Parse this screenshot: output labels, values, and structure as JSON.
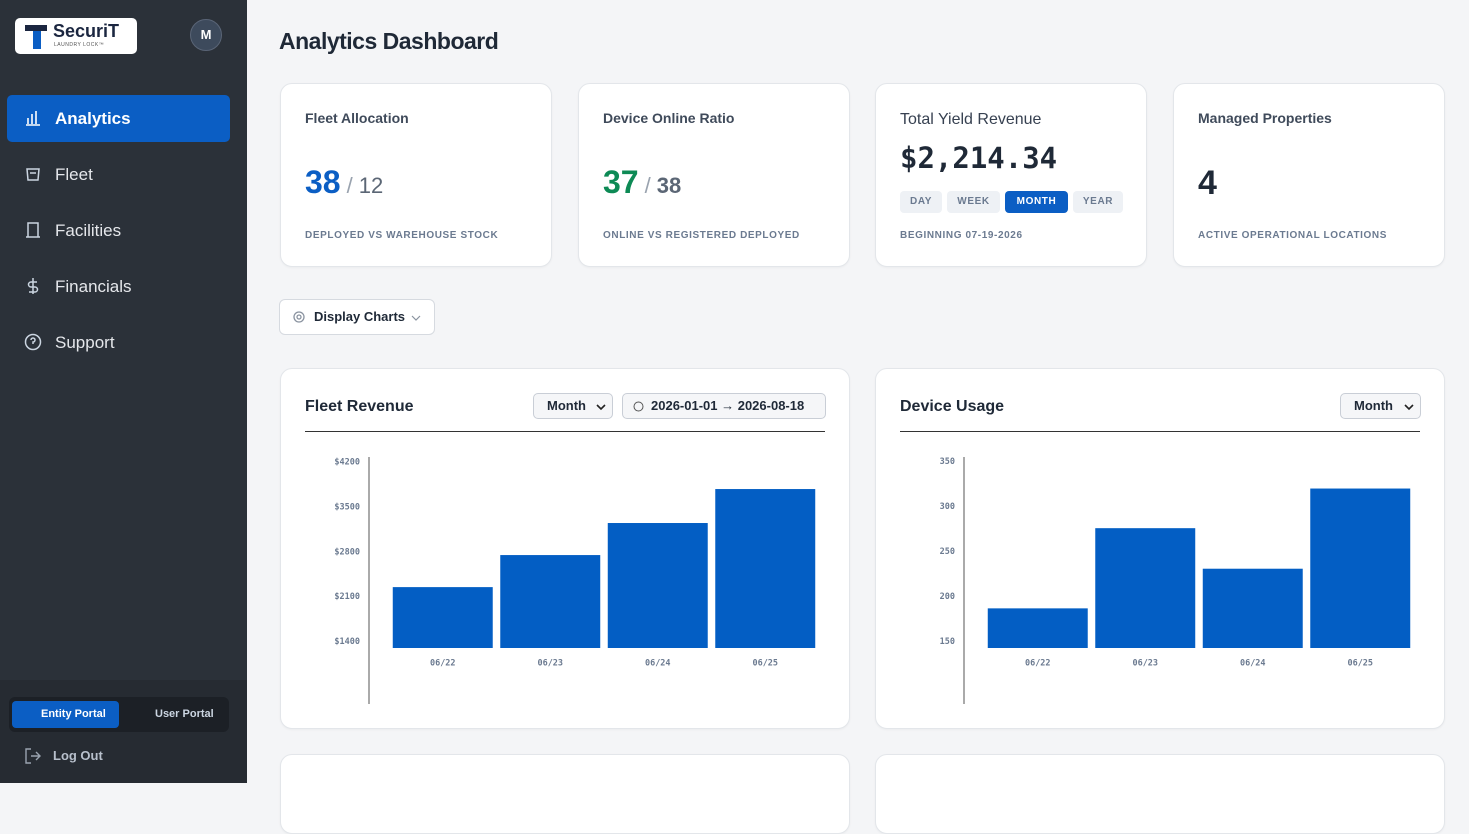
{
  "sidebar": {
    "logo": {
      "name": "SecuriT",
      "tagline": "LAUNDRY LOCK™"
    },
    "avatar": "M",
    "nav": [
      "Analytics",
      "Fleet",
      "Facilities",
      "Financials",
      "Support"
    ],
    "portal_toggle": [
      "Entity Portal",
      "User Portal"
    ],
    "logout": "Log Out"
  },
  "header": {
    "title": "Analytics Dashboard"
  },
  "stats": [
    {
      "label": "Fleet Allocation",
      "value": 38,
      "separator": "/",
      "total": 12,
      "caption": "DEPLOYED VS WAREHOUSE STOCK"
    },
    {
      "label": "Device Online Ratio",
      "value": 37,
      "separator": "/",
      "total": 38,
      "caption": "ONLINE VS REGISTERED DEPLOYED"
    },
    {
      "label": "Total Yield Revenue",
      "value": "$2,214.34",
      "periods": [
        "DAY",
        "WEEK",
        "MONTH",
        "YEAR"
      ],
      "caption": "BEGINNING 07-19-2026"
    },
    {
      "label": "Managed Properties",
      "value": 4,
      "caption": "ACTIVE OPERATIONAL LOCATIONS"
    }
  ],
  "display_button": "Display Charts",
  "chart_data": [
    {
      "type": "bar",
      "title": "Fleet Revenue",
      "period": "Month",
      "range": "2026-01-01 → 2026-08-18",
      "categories": [
        "06/22",
        "06/23",
        "06/24",
        "06/25"
      ],
      "values": [
        2250,
        2750,
        3250,
        3780
      ],
      "color": "#035ec4",
      "ylim": [
        1300,
        4280
      ],
      "yticks": [
        {
          "value": 1400,
          "label": "$1400"
        },
        {
          "value": 2100,
          "label": "$2100"
        },
        {
          "value": 2800,
          "label": "$2800"
        },
        {
          "value": 3500,
          "label": "$3500"
        },
        {
          "value": 4200,
          "label": "$4200"
        }
      ]
    },
    {
      "type": "bar",
      "title": "Device Usage",
      "period": "Month",
      "categories": [
        "06/22",
        "06/23",
        "06/24",
        "06/25"
      ],
      "values": [
        187,
        276,
        231,
        320
      ],
      "color": "#035ec4",
      "ylim": [
        143,
        355
      ],
      "yticks": [
        150,
        200,
        250,
        300,
        350
      ]
    }
  ]
}
